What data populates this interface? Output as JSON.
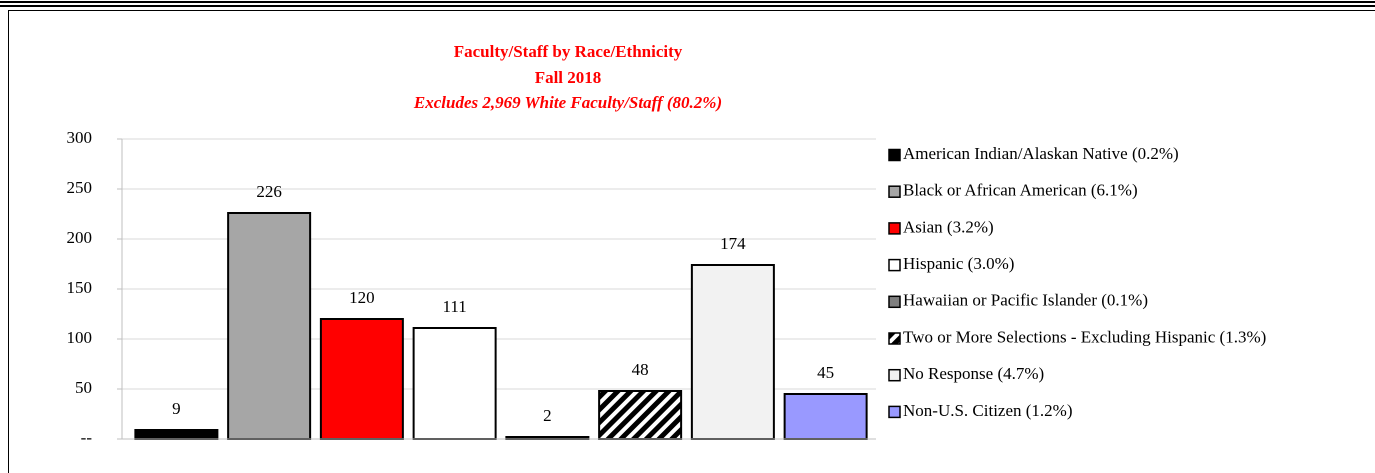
{
  "chart_data": {
    "type": "bar",
    "title": "Faculty/Staff by Race/Ethnicity",
    "subtitle": "Fall 2018",
    "annotation": "Excludes 2,969 White Faculty/Staff (80.2%)",
    "categories": [
      "American Indian/Alaskan Native (0.2%)",
      "Black or African American (6.1%)",
      "Asian (3.2%)",
      "Hispanic (3.0%)",
      "Hawaiian or Pacific Islander (0.1%)",
      "Two or More Selections - Excluding Hispanic (1.3%)",
      "No Response (4.7%)",
      "Non-U.S. Citizen (1.2%)"
    ],
    "values": [
      9,
      226,
      120,
      111,
      2,
      48,
      174,
      45
    ],
    "colors": [
      "#000000",
      "#a6a6a6",
      "#ff0000",
      "#ffffff",
      "#7f7f7f",
      "#000000",
      "#f2f2f2",
      "#9999ff"
    ],
    "patterns": [
      "solid",
      "solid",
      "solid",
      "solid",
      "solid",
      "diagonal-stripes",
      "solid",
      "solid"
    ],
    "ylim": [
      0,
      300
    ],
    "yticks": [
      {
        "value": 0,
        "label": "--"
      },
      50,
      100,
      150,
      200,
      250,
      300
    ],
    "grid": true,
    "legend": "right"
  }
}
